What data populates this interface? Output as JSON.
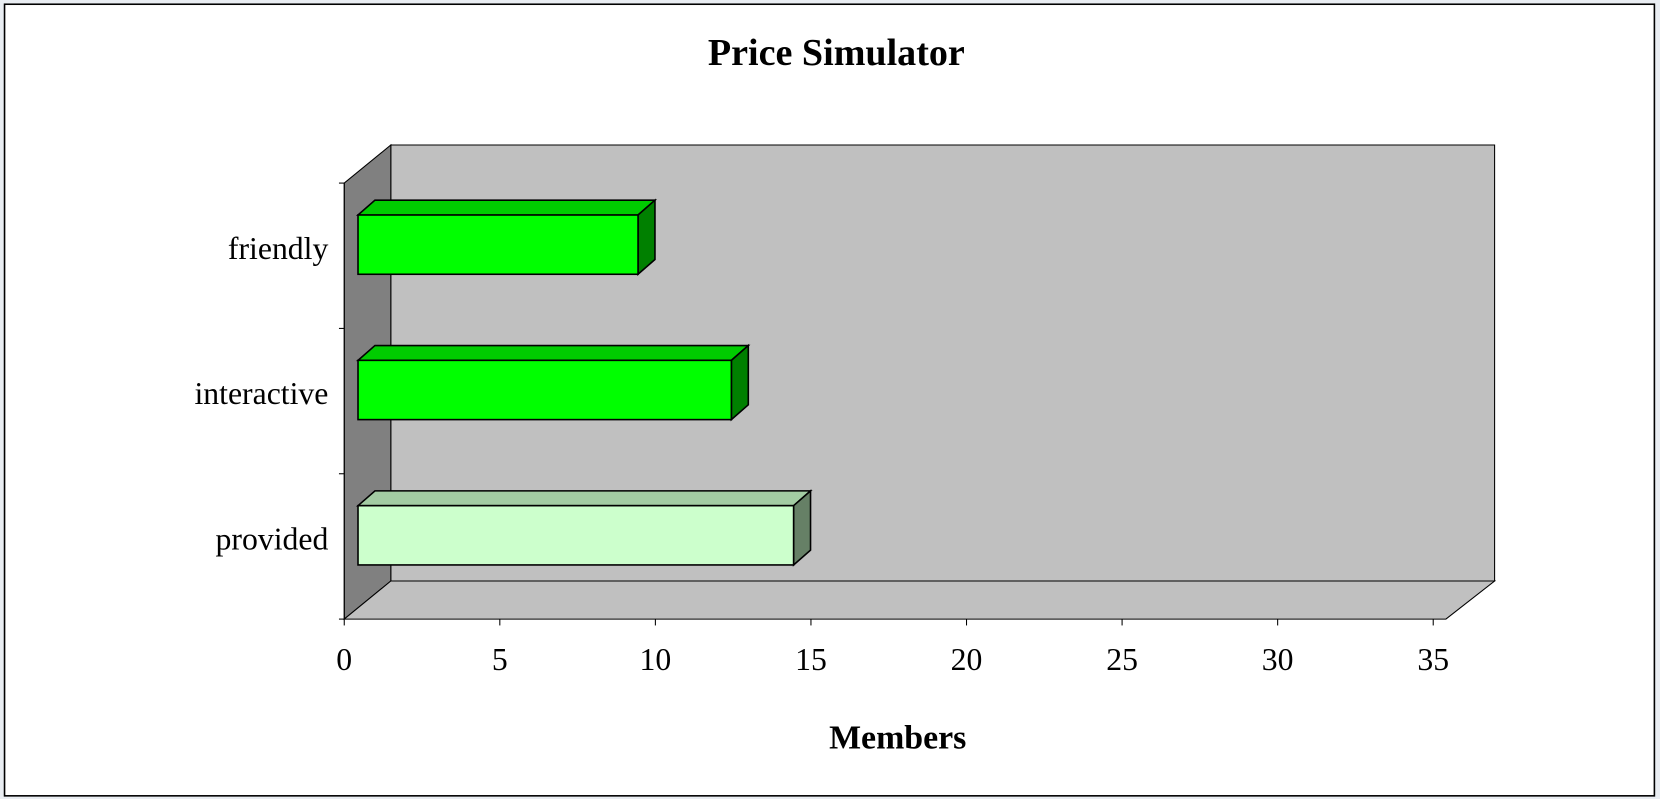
{
  "chart_data": {
    "type": "bar3d_horizontal",
    "title": "Price Simulator",
    "x_label": "Members",
    "categories": [
      "friendly",
      "interactive",
      "provided"
    ],
    "values": [
      9,
      12,
      14
    ],
    "colors": [
      "#00ff00",
      "#00ff00",
      "#ccffcc"
    ],
    "xlim": [
      0,
      35
    ],
    "xticks": [
      0,
      5,
      10,
      15,
      20,
      25,
      30,
      35
    ]
  }
}
